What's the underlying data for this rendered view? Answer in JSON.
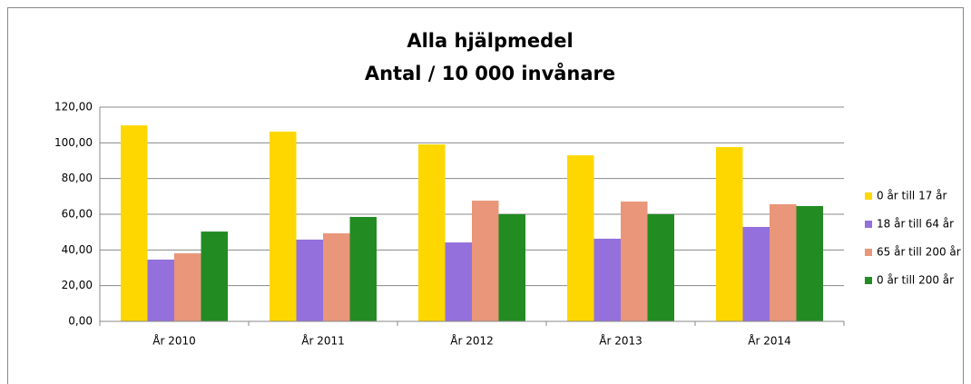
{
  "chart_data": {
    "type": "bar",
    "title": "Alla hjälpmedel",
    "subtitle": "Antal / 10 000 invånare",
    "categories": [
      "År 2010",
      "År 2011",
      "År 2012",
      "År 2013",
      "År 2014"
    ],
    "series": [
      {
        "name": "0 år till 17 år",
        "color": "#ffd700",
        "values": [
          109.8,
          106.3,
          99.1,
          93.0,
          97.6
        ]
      },
      {
        "name": "18 år till 64 år",
        "color": "#9370db",
        "values": [
          34.6,
          45.8,
          44.2,
          46.3,
          52.9
        ]
      },
      {
        "name": "65 år till 200 år",
        "color": "#e9967a",
        "values": [
          38.1,
          49.3,
          67.6,
          67.1,
          65.6
        ]
      },
      {
        "name": "0 år till 200 år",
        "color": "#228b22",
        "values": [
          50.3,
          58.5,
          60.0,
          60.0,
          64.6
        ]
      }
    ],
    "ylim": [
      0,
      120
    ],
    "yticks": [
      {
        "value": 0,
        "label": "0,00"
      },
      {
        "value": 20,
        "label": "20,00"
      },
      {
        "value": 40,
        "label": "40,00"
      },
      {
        "value": 60,
        "label": "60,00"
      },
      {
        "value": 80,
        "label": "80,00"
      },
      {
        "value": 100,
        "label": "100,00"
      },
      {
        "value": 120,
        "label": "120,00"
      }
    ],
    "grid": true,
    "legend": "right"
  }
}
